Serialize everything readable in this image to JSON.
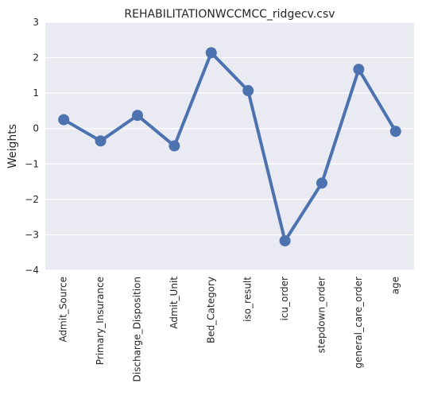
{
  "chart_data": {
    "type": "line",
    "title": "REHABILITATIONWCCMCC_ridgecv.csv",
    "xlabel": "",
    "ylabel": "Weights",
    "categories": [
      "Admit_Source",
      "Primary_Insurance",
      "Discharge_Disposition",
      "Admit_Unit",
      "Bed_Category",
      "iso_result",
      "icu_order",
      "stepdown_order",
      "general_care_order",
      "age"
    ],
    "values": [
      0.25,
      -0.35,
      0.37,
      -0.49,
      2.14,
      1.07,
      -3.17,
      -1.54,
      1.67,
      -0.08
    ],
    "ylim": [
      -4,
      3
    ],
    "yticks": [
      "−4",
      "−3",
      "−2",
      "−1",
      "0",
      "1",
      "2",
      "3"
    ],
    "ytick_values": [
      -4,
      -3,
      -2,
      -1,
      0,
      1,
      2,
      3
    ],
    "grid": true,
    "colors": {
      "line": "#4C72B0",
      "plot_background": "#EAEAF2",
      "grid": "#ffffff"
    }
  }
}
